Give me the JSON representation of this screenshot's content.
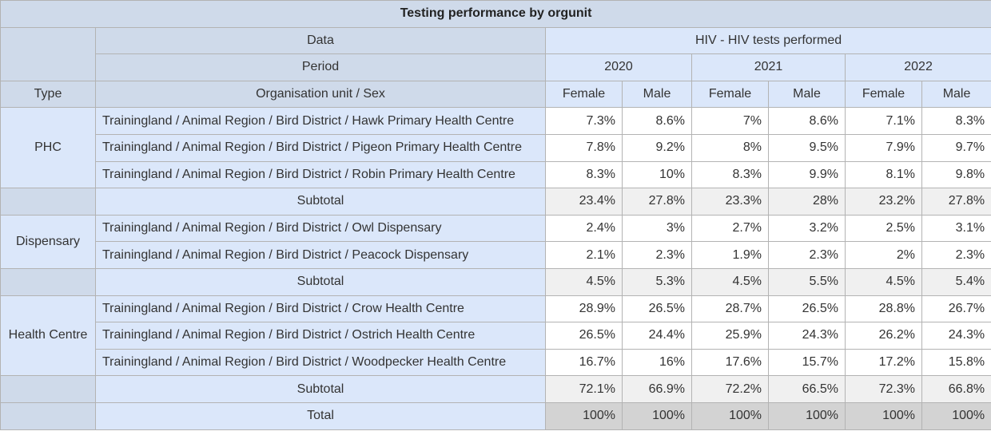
{
  "title": "Testing performance by orgunit",
  "header": {
    "data_label": "Data",
    "data_value": "HIV - HIV tests performed",
    "period_label": "Period",
    "periods": [
      "2020",
      "2021",
      "2022"
    ],
    "type_label": "Type",
    "org_label": "Organisation unit / Sex",
    "sex": [
      "Female",
      "Male"
    ]
  },
  "groups": [
    {
      "type": "PHC",
      "rows": [
        {
          "org": "Trainingland / Animal Region / Bird District / Hawk Primary Health Centre",
          "values": [
            "7.3%",
            "8.6%",
            "7%",
            "8.6%",
            "7.1%",
            "8.3%"
          ]
        },
        {
          "org": "Trainingland / Animal Region / Bird District / Pigeon Primary Health Centre",
          "values": [
            "7.8%",
            "9.2%",
            "8%",
            "9.5%",
            "7.9%",
            "9.7%"
          ]
        },
        {
          "org": "Trainingland / Animal Region / Bird District / Robin Primary Health Centre",
          "values": [
            "8.3%",
            "10%",
            "8.3%",
            "9.9%",
            "8.1%",
            "9.8%"
          ]
        }
      ],
      "subtotal": {
        "label": "Subtotal",
        "values": [
          "23.4%",
          "27.8%",
          "23.3%",
          "28%",
          "23.2%",
          "27.8%"
        ]
      }
    },
    {
      "type": "Dispensary",
      "rows": [
        {
          "org": "Trainingland / Animal Region / Bird District / Owl Dispensary",
          "values": [
            "2.4%",
            "3%",
            "2.7%",
            "3.2%",
            "2.5%",
            "3.1%"
          ]
        },
        {
          "org": "Trainingland / Animal Region / Bird District / Peacock Dispensary",
          "values": [
            "2.1%",
            "2.3%",
            "1.9%",
            "2.3%",
            "2%",
            "2.3%"
          ]
        }
      ],
      "subtotal": {
        "label": "Subtotal",
        "values": [
          "4.5%",
          "5.3%",
          "4.5%",
          "5.5%",
          "4.5%",
          "5.4%"
        ]
      }
    },
    {
      "type": "Health Centre",
      "rows": [
        {
          "org": "Trainingland / Animal Region / Bird District / Crow Health Centre",
          "values": [
            "28.9%",
            "26.5%",
            "28.7%",
            "26.5%",
            "28.8%",
            "26.7%"
          ]
        },
        {
          "org": "Trainingland / Animal Region / Bird District / Ostrich Health Centre",
          "values": [
            "26.5%",
            "24.4%",
            "25.9%",
            "24.3%",
            "26.2%",
            "24.3%"
          ]
        },
        {
          "org": "Trainingland / Animal Region / Bird District / Woodpecker Health Centre",
          "values": [
            "16.7%",
            "16%",
            "17.6%",
            "15.7%",
            "17.2%",
            "15.8%"
          ]
        }
      ],
      "subtotal": {
        "label": "Subtotal",
        "values": [
          "72.1%",
          "66.9%",
          "72.2%",
          "66.5%",
          "72.3%",
          "66.8%"
        ]
      }
    }
  ],
  "total": {
    "label": "Total",
    "values": [
      "100%",
      "100%",
      "100%",
      "100%",
      "100%",
      "100%"
    ]
  },
  "colors": {
    "title_bg": "#cfdaea",
    "header_bg": "#dbe7fa",
    "subtotal_bg": "#f0f0f0",
    "total_bg": "#d3d3d3",
    "border": "#b3b3b3"
  }
}
